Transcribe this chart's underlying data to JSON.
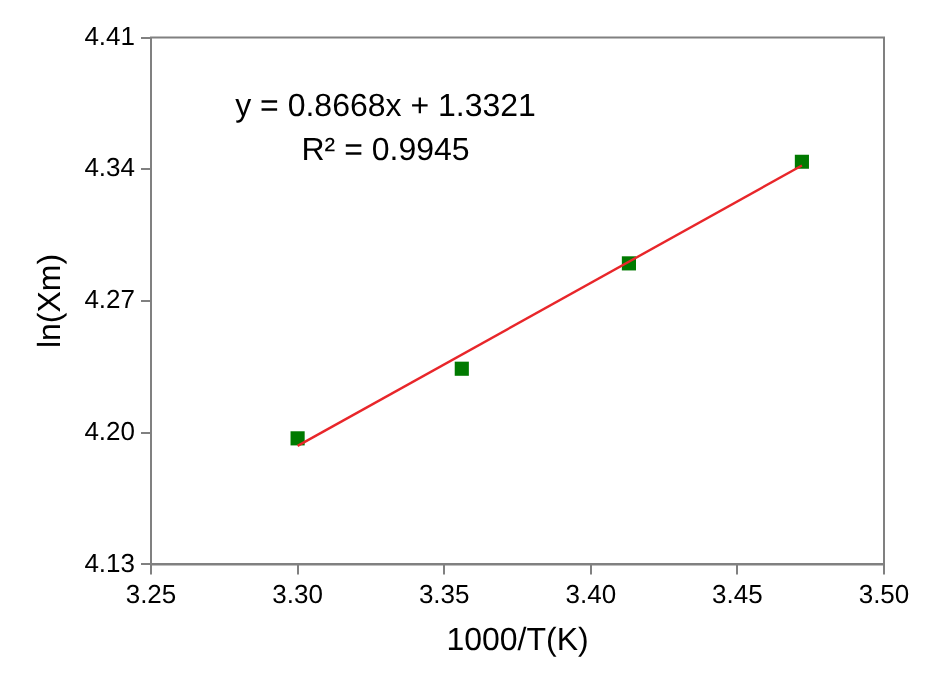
{
  "chart_data": {
    "type": "scatter",
    "xlabel": "1000/T(K)",
    "ylabel": "ln(Xm)",
    "annotations": [
      "y = 0.8668x + 1.3321",
      "R² = 0.9945"
    ],
    "xlim": [
      3.25,
      3.5
    ],
    "xticks": [
      {
        "value": 3.25,
        "label": "3.25"
      },
      {
        "value": 3.3,
        "label": "3.30"
      },
      {
        "value": 3.35,
        "label": "3.35"
      },
      {
        "value": 3.4,
        "label": "3.40"
      },
      {
        "value": 3.45,
        "label": "3.45"
      },
      {
        "value": 3.5,
        "label": "3.50"
      }
    ],
    "ylim": [
      4.13,
      4.41
    ],
    "yticks": [
      {
        "value": 4.13,
        "label": "4.13"
      },
      {
        "value": 4.2,
        "label": "4.20"
      },
      {
        "value": 4.27,
        "label": "4.27"
      },
      {
        "value": 4.34,
        "label": "4.34"
      },
      {
        "value": 4.41,
        "label": "4.41"
      }
    ],
    "grid": false,
    "legend": false,
    "series": [
      {
        "color": "#007a00",
        "marker": "square",
        "x": [
          3.3,
          3.356,
          3.413,
          3.472
        ],
        "values": [
          4.197,
          4.234,
          4.29,
          4.344
        ]
      },
      {
        "type": "line",
        "color": "#e8262a",
        "x": [
          3.3,
          3.472
        ],
        "values": [
          4.193,
          4.342
        ],
        "marker": "none",
        "line_style": "solid"
      }
    ]
  }
}
